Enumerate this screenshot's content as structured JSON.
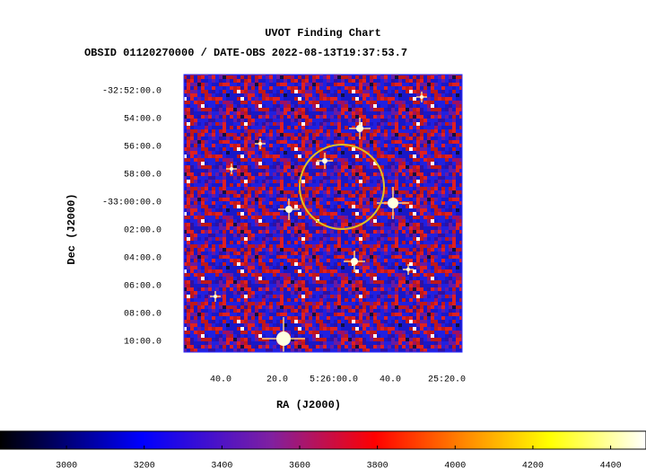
{
  "header": {
    "title": "UVOT Finding Chart",
    "subtitle": "OBSID 01120270000 / DATE-OBS 2022-08-13T19:37:53.7"
  },
  "image": {
    "xlabel": "RA (J2000)",
    "ylabel": "Dec (J2000)",
    "xticks": [
      "40.0",
      "20.0",
      "5:26:00.0",
      "40.0",
      "25:20.0"
    ],
    "yticks": [
      "-32:52:00.0",
      "54:00.0",
      "56:00.0",
      "58:00.0",
      "-33:00:00.0",
      "02:00.0",
      "04:00.0",
      "06:00.0",
      "08:00.0",
      "10:00.0"
    ]
  },
  "colorbar": {
    "lim": [
      2829,
      4491
    ],
    "ticks": [
      3000,
      3200,
      3400,
      3600,
      3800,
      4000,
      4200,
      4400
    ]
  }
}
